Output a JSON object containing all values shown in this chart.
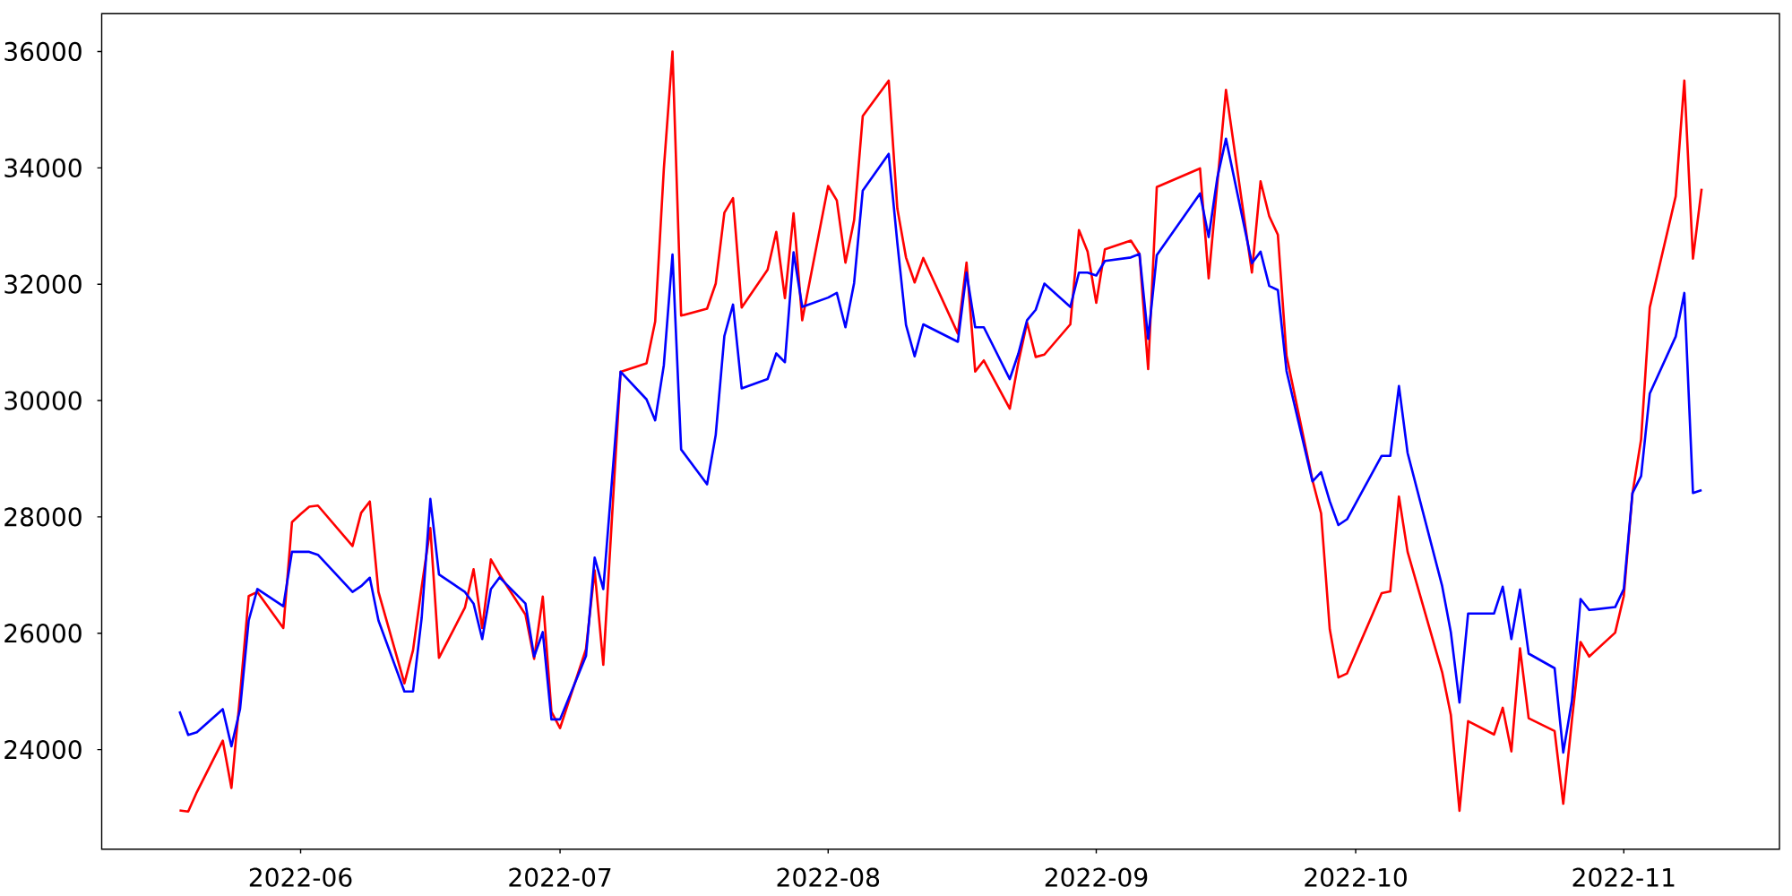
{
  "chart_data": {
    "type": "line",
    "x": [
      "2022-05-18",
      "2022-05-19",
      "2022-05-20",
      "2022-05-23",
      "2022-05-24",
      "2022-05-25",
      "2022-05-26",
      "2022-05-27",
      "2022-05-30",
      "2022-05-31",
      "2022-06-01",
      "2022-06-02",
      "2022-06-03",
      "2022-06-07",
      "2022-06-08",
      "2022-06-09",
      "2022-06-10",
      "2022-06-13",
      "2022-06-14",
      "2022-06-15",
      "2022-06-16",
      "2022-06-17",
      "2022-06-20",
      "2022-06-21",
      "2022-06-22",
      "2022-06-23",
      "2022-06-24",
      "2022-06-27",
      "2022-06-28",
      "2022-06-29",
      "2022-06-30",
      "2022-07-01",
      "2022-07-04",
      "2022-07-05",
      "2022-07-06",
      "2022-07-08",
      "2022-07-11",
      "2022-07-12",
      "2022-07-13",
      "2022-07-14",
      "2022-07-15",
      "2022-07-18",
      "2022-07-19",
      "2022-07-20",
      "2022-07-21",
      "2022-07-22",
      "2022-07-25",
      "2022-07-26",
      "2022-07-27",
      "2022-07-28",
      "2022-07-29",
      "2022-08-01",
      "2022-08-02",
      "2022-08-03",
      "2022-08-04",
      "2022-08-05",
      "2022-08-08",
      "2022-08-09",
      "2022-08-10",
      "2022-08-11",
      "2022-08-12",
      "2022-08-16",
      "2022-08-17",
      "2022-08-18",
      "2022-08-19",
      "2022-08-22",
      "2022-08-23",
      "2022-08-24",
      "2022-08-25",
      "2022-08-26",
      "2022-08-29",
      "2022-08-30",
      "2022-08-31",
      "2022-09-01",
      "2022-09-02",
      "2022-09-05",
      "2022-09-06",
      "2022-09-07",
      "2022-09-08",
      "2022-09-13",
      "2022-09-14",
      "2022-09-15",
      "2022-09-16",
      "2022-09-19",
      "2022-09-20",
      "2022-09-21",
      "2022-09-22",
      "2022-09-23",
      "2022-09-26",
      "2022-09-27",
      "2022-09-28",
      "2022-09-29",
      "2022-09-30",
      "2022-10-04",
      "2022-10-05",
      "2022-10-06",
      "2022-10-07",
      "2022-10-11",
      "2022-10-12",
      "2022-10-13",
      "2022-10-14",
      "2022-10-17",
      "2022-10-18",
      "2022-10-19",
      "2022-10-20",
      "2022-10-21",
      "2022-10-24",
      "2022-10-25",
      "2022-10-26",
      "2022-10-27",
      "2022-10-28",
      "2022-10-31",
      "2022-11-01",
      "2022-11-02",
      "2022-11-03",
      "2022-11-04",
      "2022-11-07",
      "2022-11-08",
      "2022-11-09",
      "2022-11-10"
    ],
    "series": [
      {
        "color": "#ff0000",
        "values": [
          22955,
          22935,
          23270,
          24155,
          23340,
          24940,
          26640,
          26710,
          26090,
          27910,
          28050,
          28175,
          28195,
          27500,
          28070,
          28265,
          26710,
          25140,
          25710,
          26800,
          27810,
          25580,
          26440,
          27100,
          26090,
          27270,
          27010,
          26320,
          25560,
          26630,
          24650,
          24370,
          25730,
          27080,
          25460,
          30495,
          30640,
          31360,
          33985,
          36000,
          31460,
          31580,
          32010,
          33230,
          33480,
          31600,
          32250,
          32900,
          31760,
          33220,
          31380,
          33690,
          33440,
          32370,
          33100,
          34890,
          35500,
          33300,
          32460,
          32030,
          32450,
          31150,
          32370,
          30500,
          30690,
          29860,
          30660,
          31340,
          30750,
          30790,
          31310,
          32930,
          32560,
          31680,
          32600,
          32750,
          32520,
          30540,
          33670,
          33990,
          32100,
          33730,
          35340,
          32200,
          33770,
          33170,
          32850,
          30770,
          28630,
          28060,
          26070,
          25240,
          25310,
          26690,
          26720,
          28350,
          27400,
          25330,
          24600,
          22950,
          24490,
          24260,
          24720,
          23970,
          25740,
          24540,
          24320,
          23070,
          24500,
          25850,
          25600,
          26010,
          26640,
          28400,
          29330,
          31600,
          33510,
          35500,
          32440,
          33640
        ]
      },
      {
        "color": "#0000ff",
        "values": [
          24656,
          24253,
          24300,
          24695,
          24057,
          24700,
          26220,
          26760,
          26465,
          27400,
          27400,
          27400,
          27350,
          26710,
          26810,
          26955,
          26220,
          25000,
          25000,
          26270,
          28310,
          27010,
          26710,
          26510,
          25900,
          26760,
          26960,
          26510,
          25600,
          26020,
          24520,
          24520,
          25610,
          27300,
          26760,
          30495,
          30020,
          29660,
          30610,
          32510,
          29160,
          28560,
          29410,
          31110,
          31650,
          30210,
          30370,
          30810,
          30660,
          32550,
          31610,
          31770,
          31850,
          31260,
          32020,
          33610,
          34240,
          32710,
          31300,
          30760,
          31310,
          31010,
          32200,
          31260,
          31260,
          30370,
          30810,
          31380,
          31560,
          32010,
          31610,
          32200,
          32200,
          32150,
          32400,
          32460,
          32520,
          31060,
          32500,
          33560,
          32810,
          33830,
          34500,
          32360,
          32560,
          31970,
          31900,
          30510,
          28610,
          28770,
          28270,
          27860,
          27960,
          29050,
          29050,
          30250,
          29100,
          26810,
          26020,
          24810,
          26340,
          26340,
          26800,
          25900,
          26750,
          25650,
          25400,
          23950,
          24840,
          26590,
          26400,
          26450,
          26760,
          28410,
          28700,
          30120,
          31100,
          31850,
          28410,
          28460
        ]
      }
    ],
    "xlim": [
      "2022-05-09",
      "2022-11-19"
    ],
    "ylim": [
      22290,
      36650
    ],
    "xticks": [
      {
        "value": "2022-06-01",
        "label": "2022-06"
      },
      {
        "value": "2022-07-01",
        "label": "2022-07"
      },
      {
        "value": "2022-08-01",
        "label": "2022-08"
      },
      {
        "value": "2022-09-01",
        "label": "2022-09"
      },
      {
        "value": "2022-10-01",
        "label": "2022-10"
      },
      {
        "value": "2022-11-01",
        "label": "2022-11"
      }
    ],
    "yticks": [
      24000,
      26000,
      28000,
      30000,
      32000,
      34000,
      36000
    ]
  }
}
